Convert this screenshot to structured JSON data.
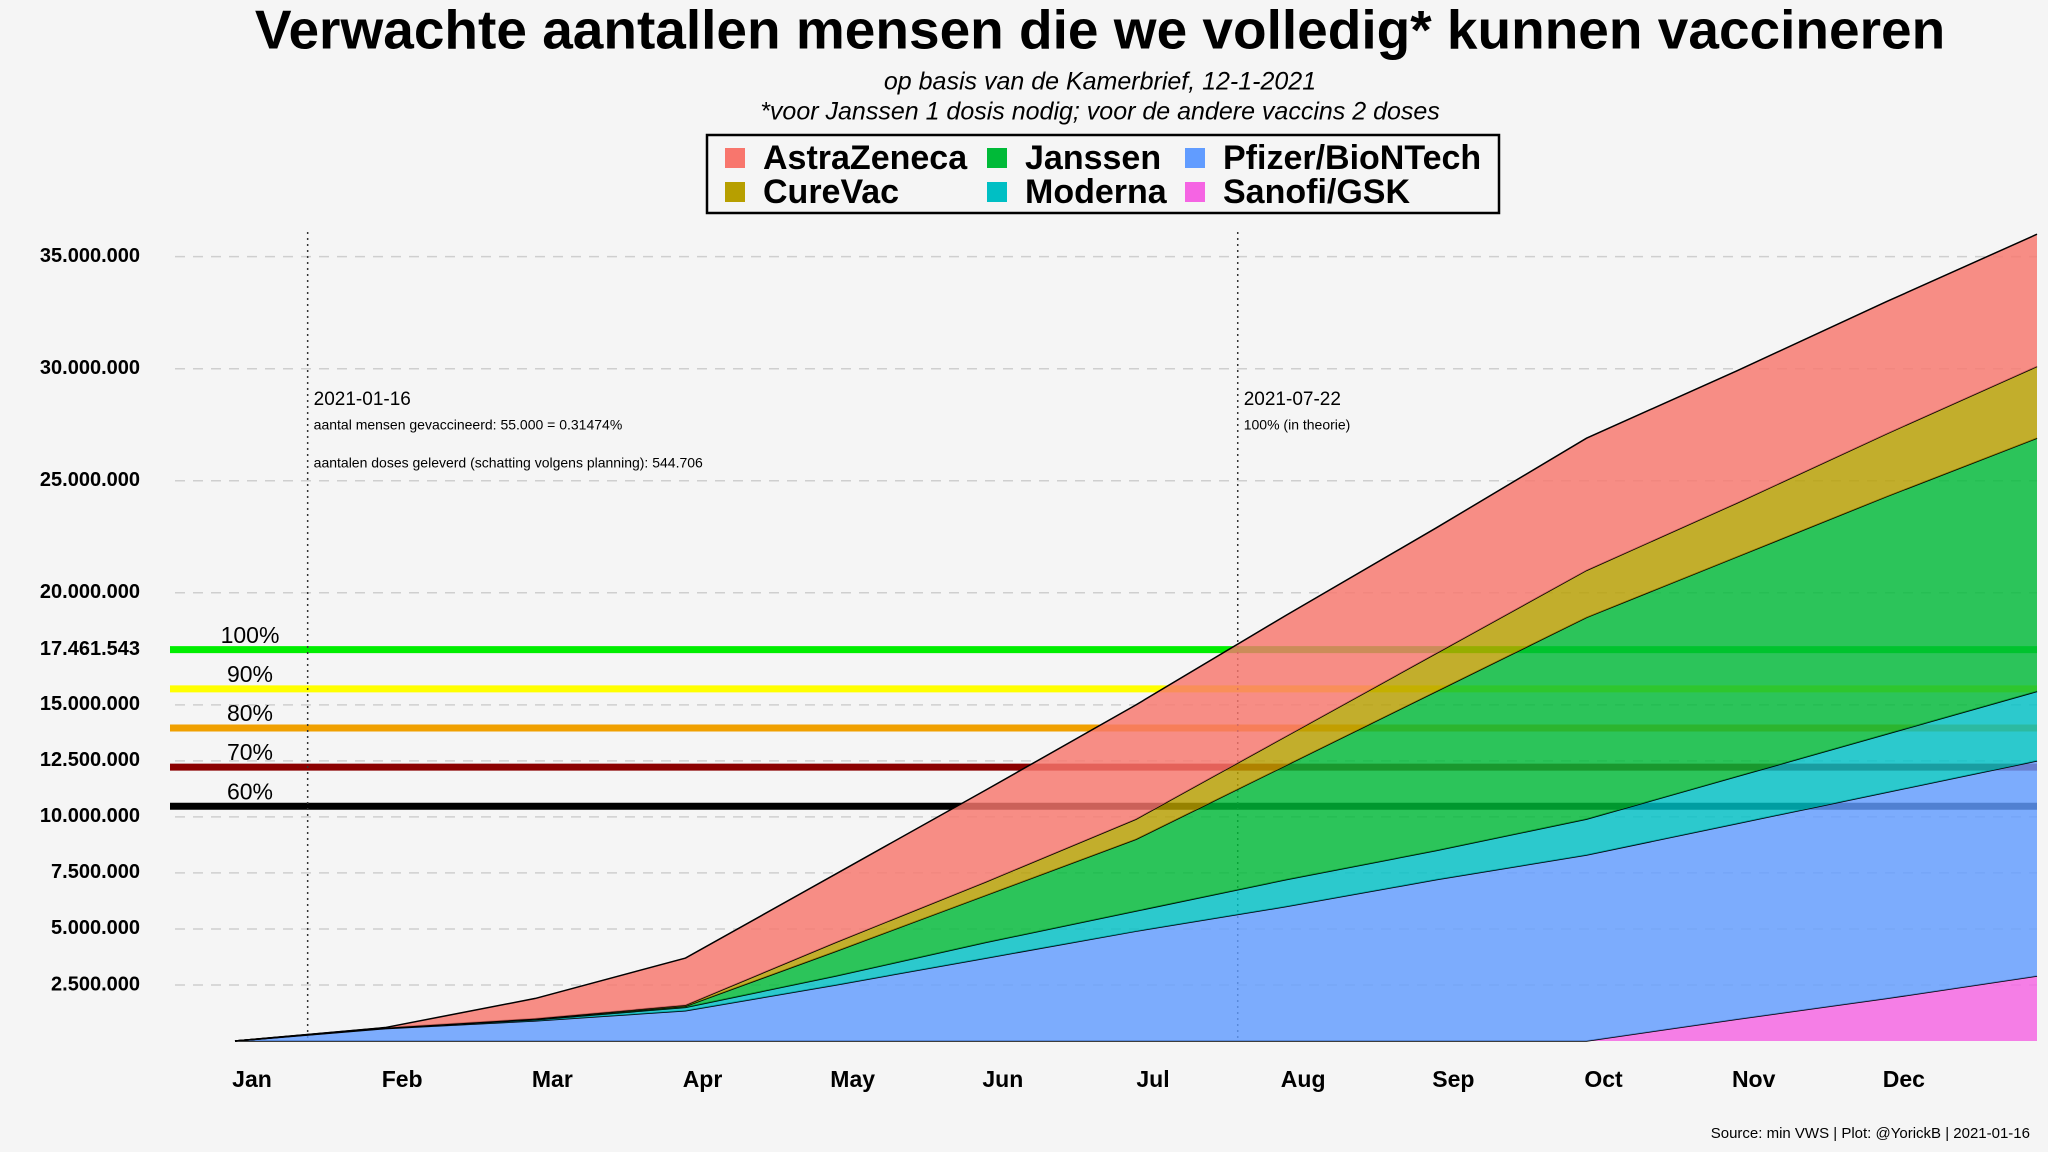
{
  "chart_data": {
    "type": "stacked-area",
    "title": "Verwachte aantallen mensen die we volledig* kunnen vaccineren",
    "subtitle": [
      "op basis van de Kamerbrief, 12-1-2021",
      "*voor Janssen 1 dosis nodig; voor de andere vaccins 2 doses"
    ],
    "categories": [
      "Jan",
      "Feb",
      "Mar",
      "Apr",
      "May",
      "Jun",
      "Jul",
      "Aug",
      "Sep",
      "Oct",
      "Nov",
      "Dec",
      null
    ],
    "series": [
      {
        "name": "AstraZeneca",
        "color": "#F8766D",
        "values": [
          0,
          10000,
          900000,
          2100000,
          3050000,
          4100000,
          5100000,
          5400000,
          5600000,
          5900000,
          5900000,
          5900000,
          5900000
        ]
      },
      {
        "name": "CureVac",
        "color": "#B79F00",
        "values": [
          0,
          10000,
          20000,
          50000,
          400000,
          600000,
          900000,
          1300000,
          1700000,
          2100000,
          2400000,
          2800000,
          3200000
        ]
      },
      {
        "name": "Janssen",
        "color": "#00BA38",
        "values": [
          0,
          10000,
          30000,
          50000,
          1100000,
          2100000,
          3200000,
          5100000,
          7100000,
          9000000,
          9800000,
          10600000,
          11300000
        ]
      },
      {
        "name": "Moderna",
        "color": "#00BFC4",
        "values": [
          0,
          20000,
          50000,
          150000,
          400000,
          700000,
          900000,
          1200000,
          1300000,
          1600000,
          2100000,
          2600000,
          3100000
        ]
      },
      {
        "name": "Pfizer/BioNTech",
        "color": "#619CFF",
        "values": [
          0,
          550000,
          900000,
          1350000,
          2500000,
          3700000,
          4900000,
          6000000,
          7200000,
          8300000,
          8730000,
          9200000,
          9600000
        ]
      },
      {
        "name": "Sanofi/GSK",
        "color": "#F564E3",
        "values": [
          0,
          0,
          0,
          0,
          0,
          0,
          0,
          0,
          0,
          0,
          970000,
          1900000,
          2900000
        ]
      }
    ],
    "ylim": [
      0,
      36100000
    ],
    "yticks": [
      {
        "value": 2500000,
        "label": "2.500.000"
      },
      {
        "value": 5000000,
        "label": "5.000.000"
      },
      {
        "value": 7500000,
        "label": "7.500.000"
      },
      {
        "value": 10000000,
        "label": "10.000.000"
      },
      {
        "value": 12500000,
        "label": "12.500.000"
      },
      {
        "value": 15000000,
        "label": "15.000.000"
      },
      {
        "value": 17461543,
        "label": "17.461.543"
      },
      {
        "value": 20000000,
        "label": "20.000.000"
      },
      {
        "value": 25000000,
        "label": "25.000.000"
      },
      {
        "value": 30000000,
        "label": "30.000.000"
      },
      {
        "value": 35000000,
        "label": "35.000.000"
      }
    ],
    "grid": true,
    "reference_lines": [
      {
        "label": "100%",
        "value": 17461543,
        "color": "#00ee00"
      },
      {
        "label": "90%",
        "value": 15715389,
        "color": "#ffff00"
      },
      {
        "label": "80%",
        "value": 13969234,
        "color": "#f0a000"
      },
      {
        "label": "70%",
        "value": 12223080,
        "color": "#8b0000"
      },
      {
        "label": "60%",
        "value": 10476926,
        "color": "#000000"
      }
    ],
    "annotations": [
      {
        "date": "2021-01-16",
        "lines": [
          "aantal mensen gevaccineerd: 55.000 = 0.31474%",
          "aantalen doses geleverd (schatting volgens planning): 544.706"
        ]
      },
      {
        "date": "2021-07-22",
        "lines": [
          "100%  (in theorie)"
        ]
      }
    ],
    "caption": "Source: min VWS | Plot: @YorickB |  2021-01-16"
  }
}
